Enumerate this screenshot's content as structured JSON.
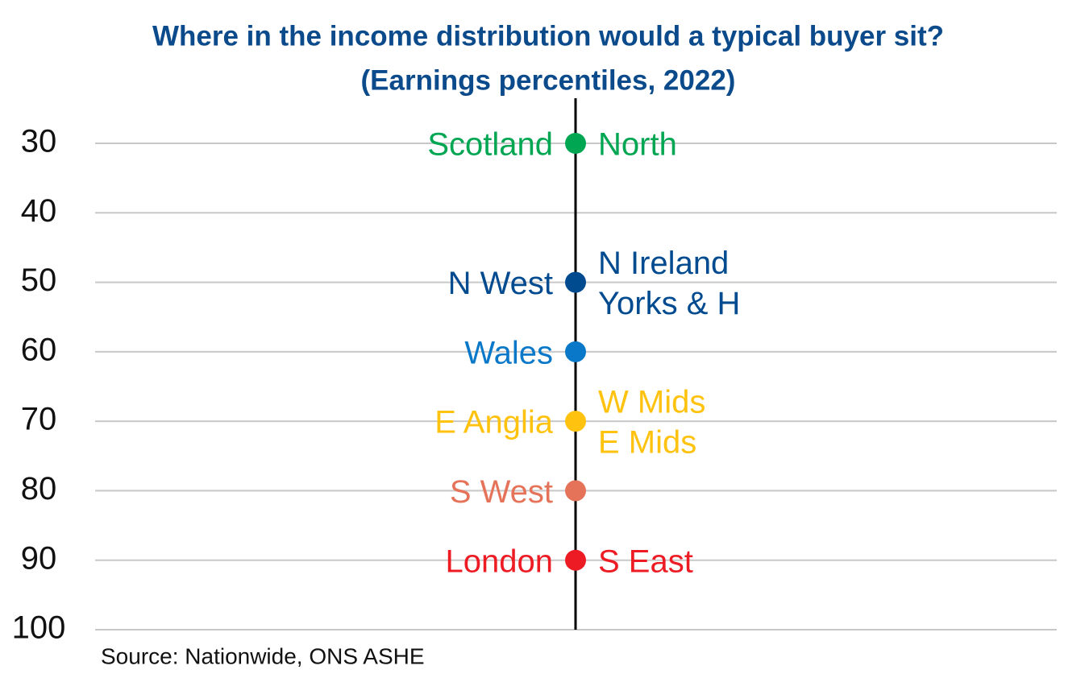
{
  "chart_data": {
    "type": "dot",
    "title": "Where in the income distribution would a typical buyer sit?",
    "subtitle": "(Earnings percentiles, 2022)",
    "source": "Source: Nationwide, ONS ASHE",
    "ylim": [
      30,
      100
    ],
    "y_inverted": true,
    "yticks": [
      30,
      40,
      50,
      60,
      70,
      80,
      90,
      100
    ],
    "grid": true,
    "points": [
      {
        "value": 30,
        "color": "#00a651",
        "left": [
          "Scotland"
        ],
        "right": [
          "North"
        ]
      },
      {
        "value": 50,
        "color": "#004a8f",
        "left": [
          "N West"
        ],
        "right": [
          "N Ireland",
          "Yorks & H"
        ]
      },
      {
        "value": 60,
        "color": "#0a78c8",
        "left": [
          "Wales"
        ]
      },
      {
        "value": 70,
        "color": "#ffc20e",
        "left": [
          "E Anglia"
        ],
        "right": [
          "W Mids",
          "E Mids"
        ]
      },
      {
        "value": 80,
        "color": "#e5735a",
        "left": [
          "S West"
        ]
      },
      {
        "value": 90,
        "color": "#ed1c24",
        "left": [
          "London"
        ],
        "right": [
          "S East"
        ]
      }
    ]
  }
}
